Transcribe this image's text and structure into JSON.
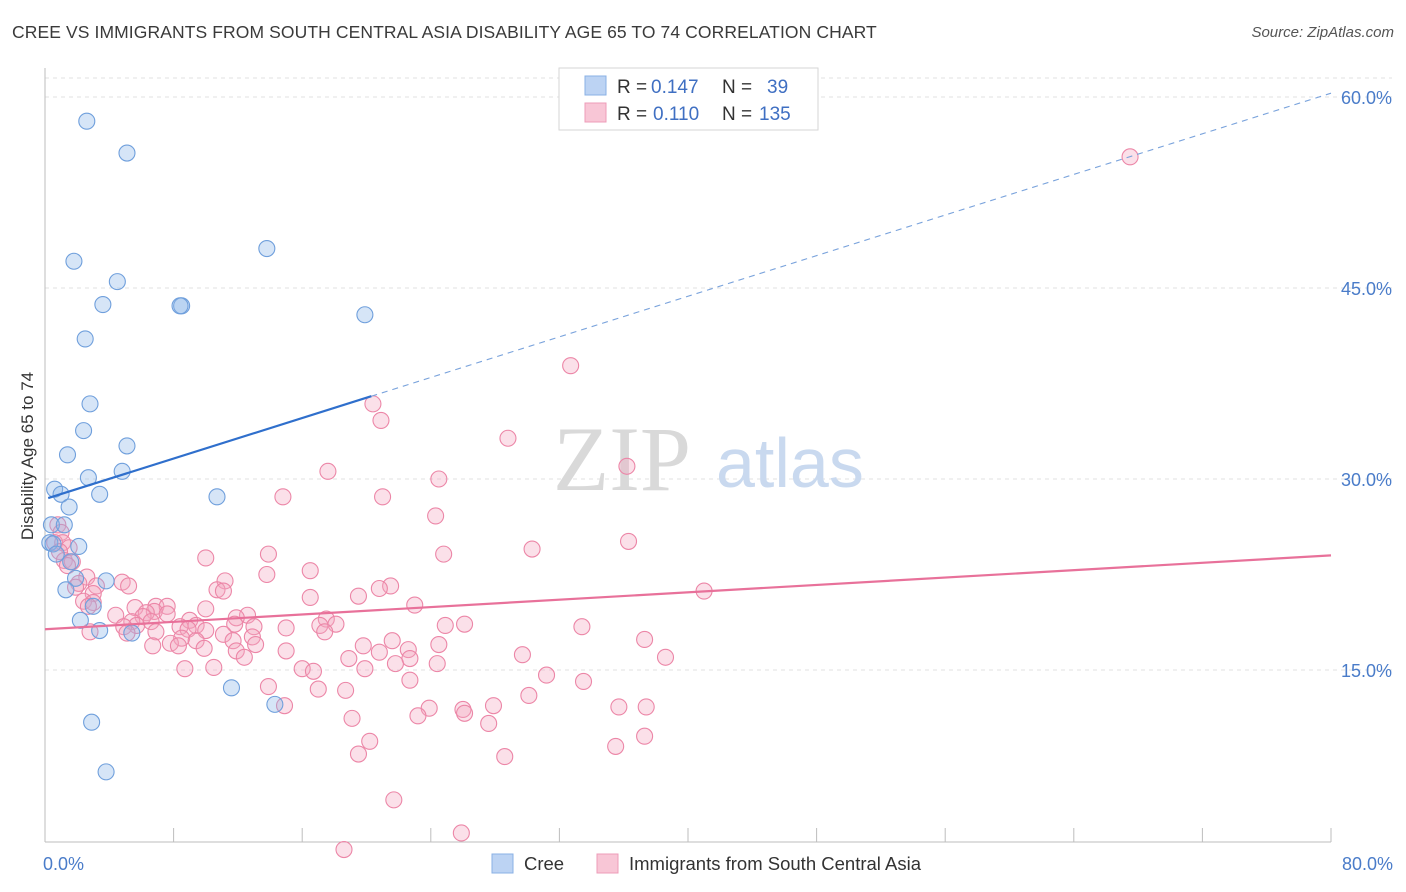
{
  "title": "CREE VS IMMIGRANTS FROM SOUTH CENTRAL ASIA DISABILITY AGE 65 TO 74 CORRELATION CHART",
  "source": "Source: ZipAtlas.com",
  "watermark": {
    "zip": "ZIP",
    "atlas": "atlas"
  },
  "chart_data": {
    "type": "scatter",
    "title": "CREE VS IMMIGRANTS FROM SOUTH CENTRAL ASIA DISABILITY AGE 65 TO 74 CORRELATION CHART",
    "xlabel": "",
    "ylabel": "Disability Age 65 to 74",
    "xlim": [
      0,
      80
    ],
    "ylim": [
      0,
      61
    ],
    "x_tick_labels": [
      {
        "value": 0,
        "label": "0.0%"
      },
      {
        "value": 80,
        "label": "80.0%"
      }
    ],
    "y_tick_labels": [
      {
        "value": 15,
        "label": "15.0%"
      },
      {
        "value": 30,
        "label": "30.0%"
      },
      {
        "value": 45,
        "label": "45.0%"
      },
      {
        "value": 60,
        "label": "60.0%"
      }
    ],
    "x_minor_ticks": [
      0,
      8,
      16,
      24,
      32,
      40,
      48,
      56,
      64,
      72,
      80
    ],
    "grid": true,
    "legend_position": "top-center",
    "legend": [
      {
        "series": "Cree",
        "r_label": "R =",
        "r_value": "0.147",
        "n_label": "N =",
        "n_value": "39"
      },
      {
        "series": "Immigrants from South Central Asia",
        "r_label": "R =",
        "r_value": "0.110",
        "n_label": "N =",
        "n_value": "135"
      }
    ],
    "series": [
      {
        "name": "Cree",
        "color": "#8ab4e8",
        "stroke": "#6f9fdc",
        "trend": {
          "x0": 0.2,
          "y0": 28.5,
          "x1": 20.3,
          "y1": 36.5,
          "color": "#2f6fcc",
          "dashed_extension": {
            "x0": 20.3,
            "y0": 36.5,
            "x1": 80,
            "y1": 60.3
          }
        },
        "points": [
          [
            2.6,
            58.1
          ],
          [
            5.1,
            55.6
          ],
          [
            13.8,
            48.1
          ],
          [
            1.8,
            47.1
          ],
          [
            4.5,
            45.5
          ],
          [
            3.6,
            43.7
          ],
          [
            8.5,
            43.6
          ],
          [
            8.4,
            43.6
          ],
          [
            19.9,
            42.9
          ],
          [
            2.5,
            41.0
          ],
          [
            2.8,
            35.9
          ],
          [
            2.4,
            33.8
          ],
          [
            5.1,
            32.6
          ],
          [
            1.4,
            31.9
          ],
          [
            4.8,
            30.6
          ],
          [
            2.7,
            30.1
          ],
          [
            0.6,
            29.2
          ],
          [
            1.0,
            28.8
          ],
          [
            3.4,
            28.8
          ],
          [
            10.7,
            28.6
          ],
          [
            1.5,
            27.8
          ],
          [
            0.4,
            26.4
          ],
          [
            1.2,
            26.4
          ],
          [
            0.3,
            25.0
          ],
          [
            0.5,
            24.9
          ],
          [
            2.1,
            24.7
          ],
          [
            0.7,
            24.1
          ],
          [
            1.6,
            23.5
          ],
          [
            1.9,
            22.2
          ],
          [
            3.8,
            22.0
          ],
          [
            1.3,
            21.3
          ],
          [
            3.0,
            20.0
          ],
          [
            2.2,
            18.9
          ],
          [
            3.4,
            18.1
          ],
          [
            5.4,
            17.9
          ],
          [
            11.6,
            13.6
          ],
          [
            14.3,
            12.3
          ],
          [
            2.9,
            10.9
          ],
          [
            3.8,
            7.0
          ]
        ]
      },
      {
        "name": "Immigrants from South Central Asia",
        "color": "#f4a6bf",
        "stroke": "#ec86a7",
        "trend": {
          "x0": 0,
          "y0": 18.2,
          "x1": 80,
          "y1": 24.0,
          "color": "#e8719a"
        },
        "points": [
          [
            67.5,
            55.3
          ],
          [
            32.7,
            38.9
          ],
          [
            20.4,
            35.9
          ],
          [
            20.9,
            34.6
          ],
          [
            28.8,
            33.2
          ],
          [
            36.2,
            31.0
          ],
          [
            17.6,
            30.6
          ],
          [
            24.5,
            30.0
          ],
          [
            14.8,
            28.6
          ],
          [
            21.0,
            28.6
          ],
          [
            24.3,
            27.1
          ],
          [
            0.8,
            26.4
          ],
          [
            1.0,
            25.8
          ],
          [
            36.3,
            25.1
          ],
          [
            0.6,
            25.0
          ],
          [
            1.1,
            25.0
          ],
          [
            1.5,
            24.6
          ],
          [
            30.3,
            24.5
          ],
          [
            0.9,
            24.3
          ],
          [
            13.9,
            24.1
          ],
          [
            24.8,
            24.1
          ],
          [
            10.0,
            23.8
          ],
          [
            1.2,
            23.6
          ],
          [
            1.7,
            23.5
          ],
          [
            1.4,
            23.2
          ],
          [
            16.5,
            22.8
          ],
          [
            13.8,
            22.5
          ],
          [
            2.6,
            22.3
          ],
          [
            11.2,
            22.0
          ],
          [
            4.8,
            21.9
          ],
          [
            2.1,
            21.8
          ],
          [
            3.2,
            21.6
          ],
          [
            5.2,
            21.6
          ],
          [
            21.5,
            21.6
          ],
          [
            1.9,
            21.5
          ],
          [
            20.8,
            21.4
          ],
          [
            10.7,
            21.3
          ],
          [
            41.0,
            21.2
          ],
          [
            11.1,
            21.2
          ],
          [
            3.0,
            21.0
          ],
          [
            19.5,
            20.8
          ],
          [
            16.5,
            20.7
          ],
          [
            2.4,
            20.4
          ],
          [
            3.0,
            20.3
          ],
          [
            6.9,
            20.0
          ],
          [
            2.7,
            20.0
          ],
          [
            23.0,
            20.1
          ],
          [
            7.6,
            20.0
          ],
          [
            5.6,
            19.9
          ],
          [
            10.0,
            19.8
          ],
          [
            6.8,
            19.6
          ],
          [
            6.3,
            19.5
          ],
          [
            7.6,
            19.4
          ],
          [
            12.6,
            19.3
          ],
          [
            4.4,
            19.3
          ],
          [
            6.1,
            19.2
          ],
          [
            11.9,
            19.1
          ],
          [
            17.5,
            19.0
          ],
          [
            9.0,
            18.9
          ],
          [
            5.4,
            18.8
          ],
          [
            6.6,
            18.8
          ],
          [
            11.8,
            18.6
          ],
          [
            18.1,
            18.6
          ],
          [
            17.1,
            18.5
          ],
          [
            5.7,
            18.5
          ],
          [
            9.4,
            18.5
          ],
          [
            4.9,
            18.4
          ],
          [
            26.1,
            18.6
          ],
          [
            24.9,
            18.5
          ],
          [
            8.4,
            18.4
          ],
          [
            13.0,
            18.4
          ],
          [
            33.4,
            18.4
          ],
          [
            15.0,
            18.3
          ],
          [
            8.9,
            18.2
          ],
          [
            10.0,
            18.1
          ],
          [
            2.8,
            18.0
          ],
          [
            17.4,
            18.0
          ],
          [
            6.9,
            18.0
          ],
          [
            5.1,
            17.9
          ],
          [
            11.1,
            17.8
          ],
          [
            12.9,
            17.6
          ],
          [
            8.5,
            17.5
          ],
          [
            21.6,
            17.3
          ],
          [
            37.3,
            17.4
          ],
          [
            9.4,
            17.3
          ],
          [
            11.7,
            17.3
          ],
          [
            7.8,
            17.1
          ],
          [
            24.5,
            17.0
          ],
          [
            13.1,
            17.0
          ],
          [
            6.7,
            16.9
          ],
          [
            8.3,
            16.9
          ],
          [
            19.8,
            16.9
          ],
          [
            9.9,
            16.7
          ],
          [
            22.6,
            16.6
          ],
          [
            15.0,
            16.5
          ],
          [
            11.9,
            16.5
          ],
          [
            20.8,
            16.4
          ],
          [
            29.7,
            16.2
          ],
          [
            38.6,
            16.0
          ],
          [
            12.4,
            16.0
          ],
          [
            22.7,
            15.9
          ],
          [
            18.9,
            15.9
          ],
          [
            24.4,
            15.5
          ],
          [
            21.8,
            15.5
          ],
          [
            10.5,
            15.2
          ],
          [
            8.7,
            15.1
          ],
          [
            16.0,
            15.1
          ],
          [
            19.9,
            15.1
          ],
          [
            16.7,
            14.9
          ],
          [
            31.2,
            14.6
          ],
          [
            22.7,
            14.2
          ],
          [
            33.5,
            14.1
          ],
          [
            13.9,
            13.7
          ],
          [
            17.0,
            13.5
          ],
          [
            18.7,
            13.4
          ],
          [
            30.1,
            13.0
          ],
          [
            14.9,
            12.2
          ],
          [
            27.9,
            12.2
          ],
          [
            35.7,
            12.1
          ],
          [
            37.4,
            12.1
          ],
          [
            23.9,
            12.0
          ],
          [
            26.0,
            11.9
          ],
          [
            23.2,
            11.4
          ],
          [
            26.1,
            11.6
          ],
          [
            19.1,
            11.2
          ],
          [
            27.6,
            10.8
          ],
          [
            37.3,
            9.8
          ],
          [
            20.2,
            9.4
          ],
          [
            35.5,
            9.0
          ],
          [
            19.5,
            8.4
          ],
          [
            28.6,
            8.2
          ],
          [
            21.7,
            4.8
          ],
          [
            25.9,
            2.2
          ],
          [
            18.6,
            0.9
          ]
        ]
      }
    ]
  }
}
